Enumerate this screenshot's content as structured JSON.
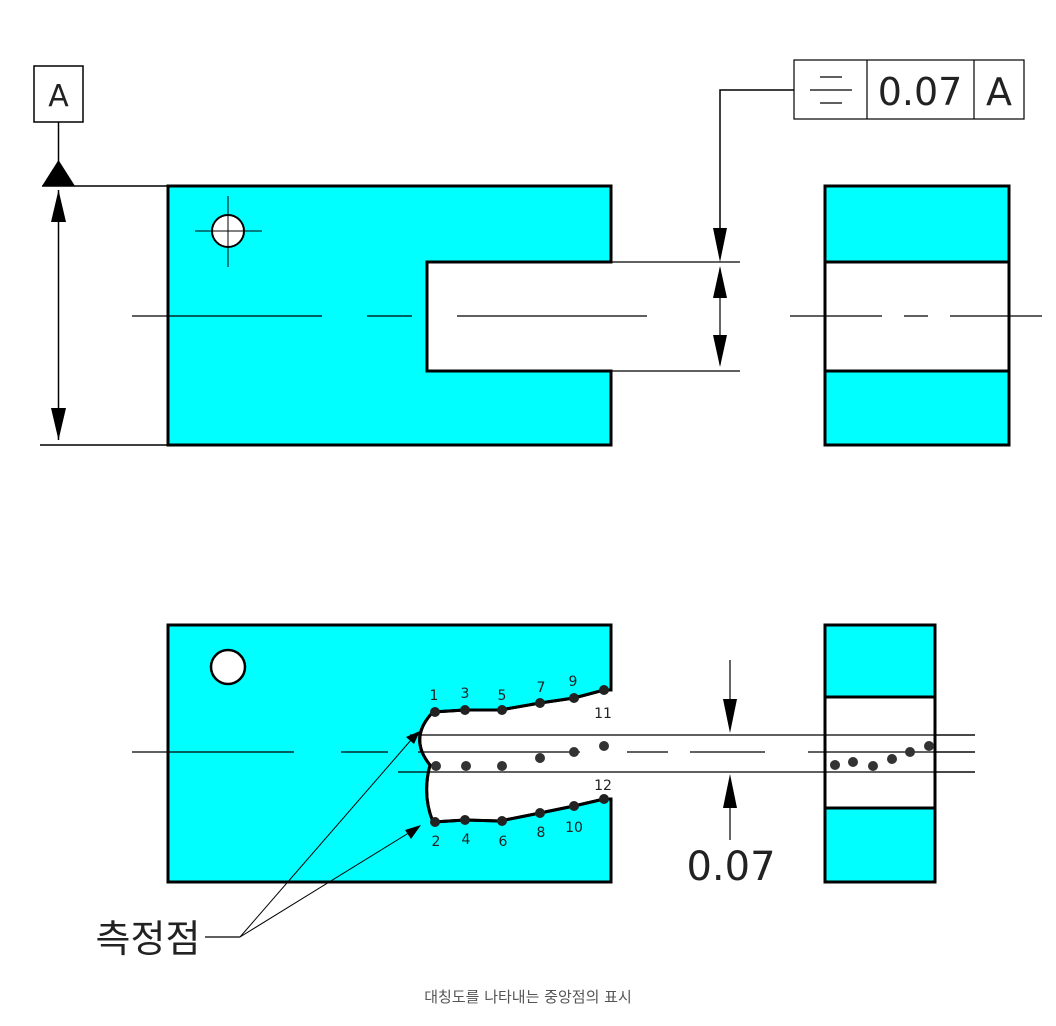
{
  "datum": {
    "letter": "A"
  },
  "feature_control_frame": {
    "symbol": "symmetry-icon",
    "tolerance": "0.07",
    "datum_ref": "A"
  },
  "measured_tolerance": "0.07",
  "points_label": "측정점",
  "point_numbers": [
    "1",
    "2",
    "3",
    "4",
    "5",
    "6",
    "7",
    "8",
    "9",
    "10",
    "11",
    "12"
  ],
  "caption": "대칭도를 나타내는 중앙점의 표시",
  "colors": {
    "fill": "#00FFFF",
    "line": "#000000"
  }
}
